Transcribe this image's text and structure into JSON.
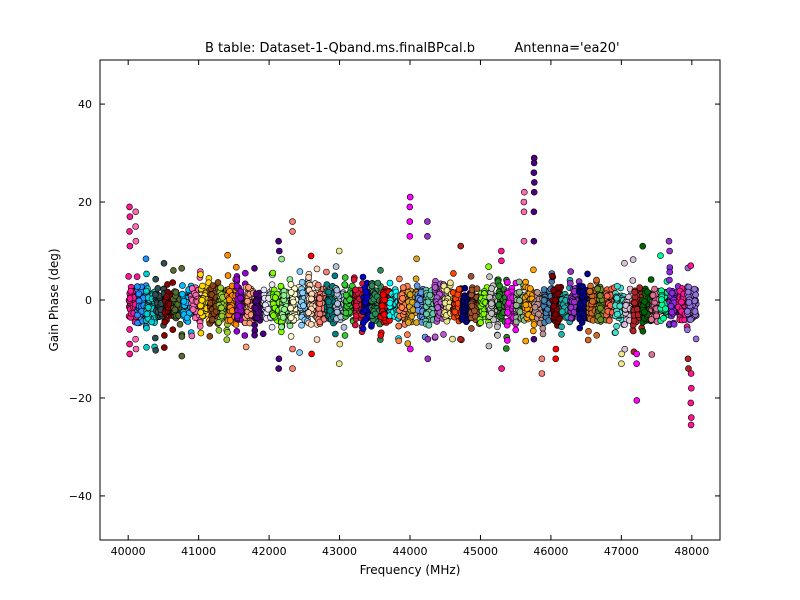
{
  "chart_data": {
    "type": "scatter",
    "title": "B table: Dataset-1-Qband.ms.finalBPcal.b",
    "antenna_label": "Antenna='ea20'",
    "xlabel": "Frequency (MHz)",
    "ylabel": "Gain Phase (deg)",
    "xlim": [
      39600,
      48400
    ],
    "ylim": [
      -49,
      49
    ],
    "x_ticks": [
      40000,
      41000,
      42000,
      43000,
      44000,
      45000,
      46000,
      47000,
      48000
    ],
    "y_ticks": [
      40,
      20,
      0,
      -20,
      -40
    ],
    "y_tick_labels": [
      "40",
      "20",
      "0",
      "−20",
      "−40"
    ],
    "grid": false,
    "legend": "none",
    "spw_width_mhz": 128,
    "spw_starts": [
      40000,
      40128,
      40256,
      40384,
      40512,
      40640,
      40768,
      40896,
      41024,
      41152,
      41280,
      41408,
      41536,
      41664,
      41792,
      41920,
      42048,
      42176,
      42304,
      42432,
      42560,
      42688,
      42816,
      42944,
      43072,
      43200,
      43328,
      43456,
      43584,
      43712,
      43840,
      43968,
      44096,
      44224,
      44352,
      44480,
      44608,
      44736,
      44864,
      44992,
      45120,
      45248,
      45376,
      45504,
      45632,
      45760,
      45888,
      46016,
      46144,
      46272,
      46400,
      46528,
      46656,
      46784,
      46912,
      47040,
      47168,
      47296,
      47424,
      47552,
      47680,
      47808,
      47936
    ],
    "spw_colors": [
      "#ff1493",
      "#1e90ff",
      "#00ced1",
      "#2f4f4f",
      "#8b0000",
      "#556b2f",
      "#00bfff",
      "#ff69b4",
      "#ffd700",
      "#8b4513",
      "#9acd32",
      "#ff8c00",
      "#9400d3",
      "#ffa07a",
      "#4b0082",
      "#e6e6fa",
      "#7cfc00",
      "#90ee90",
      "#fffacd",
      "#87cefa",
      "#ffdab9",
      "#fa8072",
      "#008080",
      "#b0c4de",
      "#32cd32",
      "#dc143c",
      "#0000cd",
      "#2e8b57",
      "#ff0000",
      "#00ffff",
      "#ff7f50",
      "#daa520",
      "#6495ed",
      "#66cdaa",
      "#ba55d3",
      "#f0e68c",
      "#ff4500",
      "#000080",
      "#a0522d",
      "#7fff00",
      "#c0c0c0",
      "#228b22",
      "#ff00ff",
      "#8fbc8f",
      "#ffa500",
      "#bc8f8f",
      "#4682b4",
      "#800000",
      "#20b2aa",
      "#9932cc",
      "#00008b",
      "#d2691e",
      "#6b8e23",
      "#ff6347",
      "#40e0d0",
      "#d8bfd8",
      "#b22222",
      "#006400",
      "#db7093",
      "#00fa9a",
      "#8a2be2",
      "#ff1493",
      "#9370db"
    ],
    "edge_spikes": [
      {
        "x": 40020,
        "y": [
          19,
          17,
          14,
          11,
          -6,
          -9,
          -11
        ]
      },
      {
        "x": 40110,
        "y": [
          18,
          15,
          12,
          -8,
          -10
        ]
      },
      {
        "x": 42140,
        "y": [
          12,
          10,
          -12,
          -14
        ]
      },
      {
        "x": 42330,
        "y": [
          16,
          14,
          -10,
          -14
        ]
      },
      {
        "x": 42600,
        "y": [
          9,
          -11
        ]
      },
      {
        "x": 43000,
        "y": [
          10,
          -9,
          -13
        ]
      },
      {
        "x": 44000,
        "y": [
          21,
          19,
          16,
          13,
          -10
        ]
      },
      {
        "x": 44250,
        "y": [
          16,
          13,
          -8,
          -12
        ]
      },
      {
        "x": 44720,
        "y": [
          11,
          -8
        ]
      },
      {
        "x": 45300,
        "y": [
          10,
          8,
          -14
        ]
      },
      {
        "x": 45620,
        "y": [
          22,
          20,
          18,
          12
        ]
      },
      {
        "x": 45760,
        "y": [
          29,
          28,
          26,
          24,
          22,
          18,
          12,
          -8
        ]
      },
      {
        "x": 45870,
        "y": [
          -12,
          -15
        ]
      },
      {
        "x": 46070,
        "y": [
          -10,
          -12
        ]
      },
      {
        "x": 47000,
        "y": [
          -11,
          -13
        ]
      },
      {
        "x": 47220,
        "y": [
          -11,
          -13,
          -20.5
        ]
      },
      {
        "x": 47680,
        "y": [
          12,
          10
        ]
      },
      {
        "x": 47950,
        "y": [
          -12,
          -14
        ]
      },
      {
        "x": 47990,
        "y": [
          7,
          -15,
          -18,
          -21,
          -24,
          -25.5
        ]
      }
    ]
  }
}
